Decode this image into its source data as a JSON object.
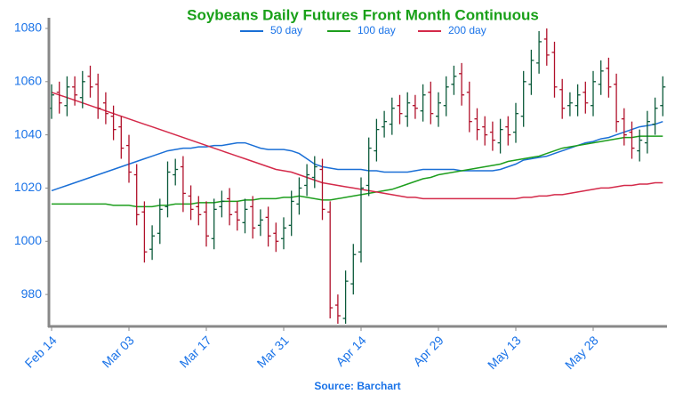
{
  "chart_data": {
    "type": "ohlc",
    "title": "Soybeans Daily Futures Front Month Continuous",
    "source": "Source: Barchart",
    "title_color": "#19a019",
    "label_color": "#1a73e8",
    "up_color": "#0b5a3a",
    "down_color": "#b0102a",
    "categories": [
      "Feb 14",
      null,
      null,
      null,
      null,
      null,
      null,
      null,
      null,
      null,
      "Mar 03",
      null,
      null,
      null,
      null,
      null,
      null,
      null,
      null,
      null,
      "Mar 17",
      null,
      null,
      null,
      null,
      null,
      null,
      null,
      null,
      null,
      "Mar 31",
      null,
      null,
      null,
      null,
      null,
      null,
      null,
      null,
      null,
      "Apr 14",
      null,
      null,
      null,
      null,
      null,
      null,
      null,
      null,
      null,
      "Apr 29",
      null,
      null,
      null,
      null,
      null,
      null,
      null,
      null,
      null,
      "May 13",
      null,
      null,
      null,
      null,
      null,
      null,
      null,
      null,
      null,
      "May 28",
      null,
      null,
      null,
      null,
      null,
      null,
      null,
      null,
      null
    ],
    "open": [
      1050,
      1056,
      1051,
      1058,
      1054,
      1062,
      1059,
      1052,
      1047,
      1043,
      1036,
      1025,
      1011,
      997,
      1003,
      1013,
      1025,
      1028,
      1017,
      1013,
      1011,
      1001,
      1013,
      1016,
      1011,
      1007,
      1013,
      1006,
      1009,
      1003,
      1001,
      1006,
      1014,
      1021,
      1024,
      1027,
      1011,
      976,
      971,
      984,
      996,
      1021,
      1034,
      1043,
      1044,
      1051,
      1047,
      1051,
      1049,
      1056,
      1047,
      1051,
      1059,
      1063,
      1056,
      1046,
      1043,
      1041,
      1037,
      1043,
      1041,
      1047,
      1059,
      1067,
      1076,
      1071,
      1057,
      1051,
      1051,
      1056,
      1051,
      1059,
      1065,
      1059,
      1046,
      1041,
      1034,
      1037,
      1044,
      1051
    ],
    "high": [
      1059,
      1060,
      1062,
      1062,
      1064,
      1066,
      1063,
      1056,
      1051,
      1047,
      1040,
      1029,
      1015,
      1006,
      1016,
      1030,
      1031,
      1032,
      1021,
      1017,
      1015,
      1016,
      1019,
      1020,
      1015,
      1016,
      1017,
      1012,
      1013,
      1007,
      1009,
      1019,
      1024,
      1029,
      1032,
      1031,
      1015,
      980,
      989,
      999,
      1024,
      1039,
      1046,
      1049,
      1054,
      1055,
      1056,
      1055,
      1059,
      1060,
      1056,
      1062,
      1066,
      1067,
      1060,
      1050,
      1047,
      1045,
      1046,
      1047,
      1052,
      1064,
      1072,
      1079,
      1080,
      1075,
      1061,
      1056,
      1059,
      1060,
      1064,
      1068,
      1069,
      1063,
      1050,
      1045,
      1042,
      1049,
      1054,
      1062
    ],
    "low": [
      1046,
      1048,
      1047,
      1051,
      1050,
      1054,
      1046,
      1044,
      1038,
      1031,
      1022,
      1006,
      992,
      993,
      999,
      1009,
      1021,
      1011,
      1008,
      1006,
      998,
      997,
      1009,
      1006,
      1004,
      1003,
      1001,
      1002,
      998,
      996,
      997,
      1002,
      1010,
      1017,
      1020,
      1008,
      971,
      969,
      969,
      980,
      992,
      1017,
      1030,
      1039,
      1040,
      1044,
      1043,
      1046,
      1045,
      1044,
      1043,
      1047,
      1055,
      1051,
      1041,
      1038,
      1036,
      1034,
      1033,
      1036,
      1037,
      1043,
      1055,
      1063,
      1066,
      1054,
      1046,
      1047,
      1047,
      1048,
      1047,
      1055,
      1054,
      1041,
      1036,
      1031,
      1030,
      1033,
      1040,
      1047
    ],
    "close": [
      1055,
      1052,
      1058,
      1055,
      1060,
      1058,
      1050,
      1048,
      1042,
      1035,
      1026,
      1010,
      996,
      1002,
      1012,
      1026,
      1027,
      1018,
      1012,
      1010,
      1002,
      1012,
      1015,
      1010,
      1008,
      1012,
      1005,
      1008,
      1002,
      1000,
      1005,
      1015,
      1020,
      1025,
      1028,
      1012,
      975,
      972,
      985,
      995,
      1020,
      1035,
      1042,
      1045,
      1050,
      1048,
      1052,
      1050,
      1055,
      1048,
      1052,
      1058,
      1062,
      1055,
      1045,
      1042,
      1040,
      1038,
      1042,
      1040,
      1048,
      1060,
      1068,
      1075,
      1070,
      1058,
      1050,
      1052,
      1055,
      1052,
      1060,
      1064,
      1058,
      1045,
      1040,
      1035,
      1038,
      1045,
      1050,
      1058
    ],
    "series": [
      {
        "name": "50 day",
        "color": "#1a6fd6",
        "values": [
          1019,
          1020,
          1021,
          1022,
          1023,
          1024,
          1025,
          1026,
          1027,
          1028,
          1029,
          1030,
          1031,
          1032,
          1033,
          1034,
          1034.5,
          1035,
          1035,
          1035.5,
          1035.5,
          1036,
          1036,
          1036.5,
          1037,
          1037,
          1036,
          1035,
          1034.5,
          1034.5,
          1034.5,
          1034,
          1033,
          1031,
          1029,
          1028,
          1027.5,
          1027,
          1027,
          1027,
          1027,
          1026.5,
          1026.5,
          1026,
          1026,
          1026,
          1026,
          1026.5,
          1027,
          1027,
          1027,
          1027,
          1027,
          1026.5,
          1026.5,
          1026.5,
          1026.5,
          1026.5,
          1027,
          1028,
          1029,
          1030.5,
          1031,
          1031.5,
          1032,
          1033,
          1034,
          1035,
          1036,
          1037,
          1037.5,
          1038.5,
          1039,
          1040,
          1041,
          1042,
          1043,
          1043.5,
          1044,
          1045
        ]
      },
      {
        "name": "100 day",
        "color": "#1d9e1d",
        "values": [
          1014,
          1014,
          1014,
          1014,
          1014,
          1014,
          1014,
          1014,
          1013.5,
          1013.5,
          1013.5,
          1013,
          1013,
          1013,
          1013.5,
          1013.5,
          1014,
          1014,
          1014,
          1014.5,
          1014.5,
          1014.5,
          1015,
          1015,
          1015,
          1015.5,
          1015.5,
          1016,
          1016,
          1016,
          1016.5,
          1016.5,
          1017,
          1016.5,
          1016,
          1015.5,
          1015.5,
          1016,
          1016.5,
          1017,
          1017.5,
          1018,
          1018.5,
          1019,
          1019.5,
          1020.5,
          1021.5,
          1022.5,
          1023.5,
          1024,
          1025,
          1025.5,
          1026,
          1026.5,
          1027,
          1027.5,
          1028,
          1028.5,
          1029,
          1030,
          1030.5,
          1031,
          1031.5,
          1032,
          1033,
          1034,
          1035,
          1035.5,
          1036,
          1036.5,
          1037,
          1037.5,
          1038,
          1038.5,
          1039,
          1039,
          1039.5,
          1039.5,
          1039.5,
          1039.5
        ]
      },
      {
        "name": "200 day",
        "color": "#d42a4a",
        "values": [
          1056,
          1055,
          1054,
          1053,
          1052,
          1051,
          1050,
          1049,
          1048,
          1047,
          1046,
          1045,
          1044,
          1043,
          1042,
          1041,
          1040,
          1039,
          1038,
          1037,
          1036,
          1035,
          1034,
          1033,
          1032,
          1031,
          1030,
          1029,
          1028,
          1027,
          1026.5,
          1026,
          1025,
          1024,
          1023,
          1022,
          1021.5,
          1021,
          1020.5,
          1020,
          1019.5,
          1019,
          1018.5,
          1018,
          1017.5,
          1017,
          1016.5,
          1016.5,
          1016,
          1016,
          1016,
          1016,
          1016,
          1016,
          1016,
          1016,
          1016,
          1016,
          1016,
          1016,
          1016,
          1016.5,
          1016.5,
          1017,
          1017,
          1017.5,
          1017.5,
          1018,
          1018.5,
          1019,
          1019.5,
          1020,
          1020,
          1020.5,
          1021,
          1021,
          1021.5,
          1021.5,
          1022,
          1022
        ]
      }
    ],
    "ylim": [
      968,
      1084
    ],
    "yticks": [
      980,
      1000,
      1020,
      1040,
      1060,
      1080
    ],
    "grid": false
  }
}
